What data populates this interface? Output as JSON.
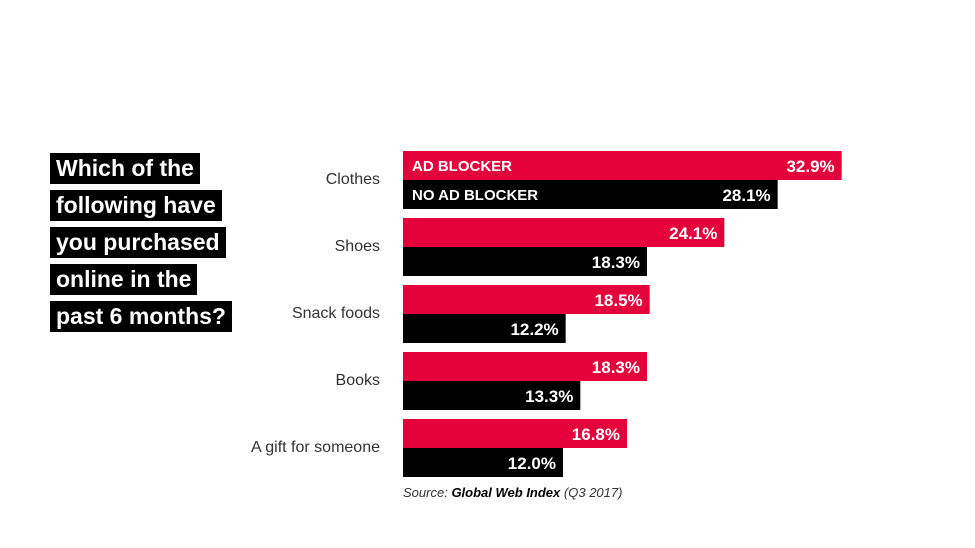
{
  "title_lines": [
    "Which of the",
    "following have",
    "you purchased",
    "online in the",
    "past 6 months?"
  ],
  "source": {
    "prefix": "Source:",
    "name": "Global Web Index",
    "suffix": "(Q3 2017)"
  },
  "colors": {
    "ad_blocker": "#e4003b",
    "no_ad_blocker": "#000000"
  },
  "chart_data": {
    "type": "bar",
    "orientation": "horizontal",
    "title": "Which of the following have you purchased online in the past 6 months?",
    "categories": [
      "Clothes",
      "Shoes",
      "Snack foods",
      "Books",
      "A gift for someone"
    ],
    "series": [
      {
        "name": "AD BLOCKER",
        "values": [
          32.9,
          24.1,
          18.5,
          18.3,
          16.8
        ],
        "labels": [
          "32.9%",
          "24.1%",
          "18.5%",
          "18.3%",
          "16.8%"
        ]
      },
      {
        "name": "NO AD BLOCKER",
        "values": [
          28.1,
          18.3,
          12.2,
          13.3,
          12.0
        ],
        "labels": [
          "28.1%",
          "18.3%",
          "12.2%",
          "13.3%",
          "12.0%"
        ]
      }
    ],
    "xlim": [
      0,
      33
    ],
    "grid": false,
    "legend": "inside-first-bars"
  }
}
